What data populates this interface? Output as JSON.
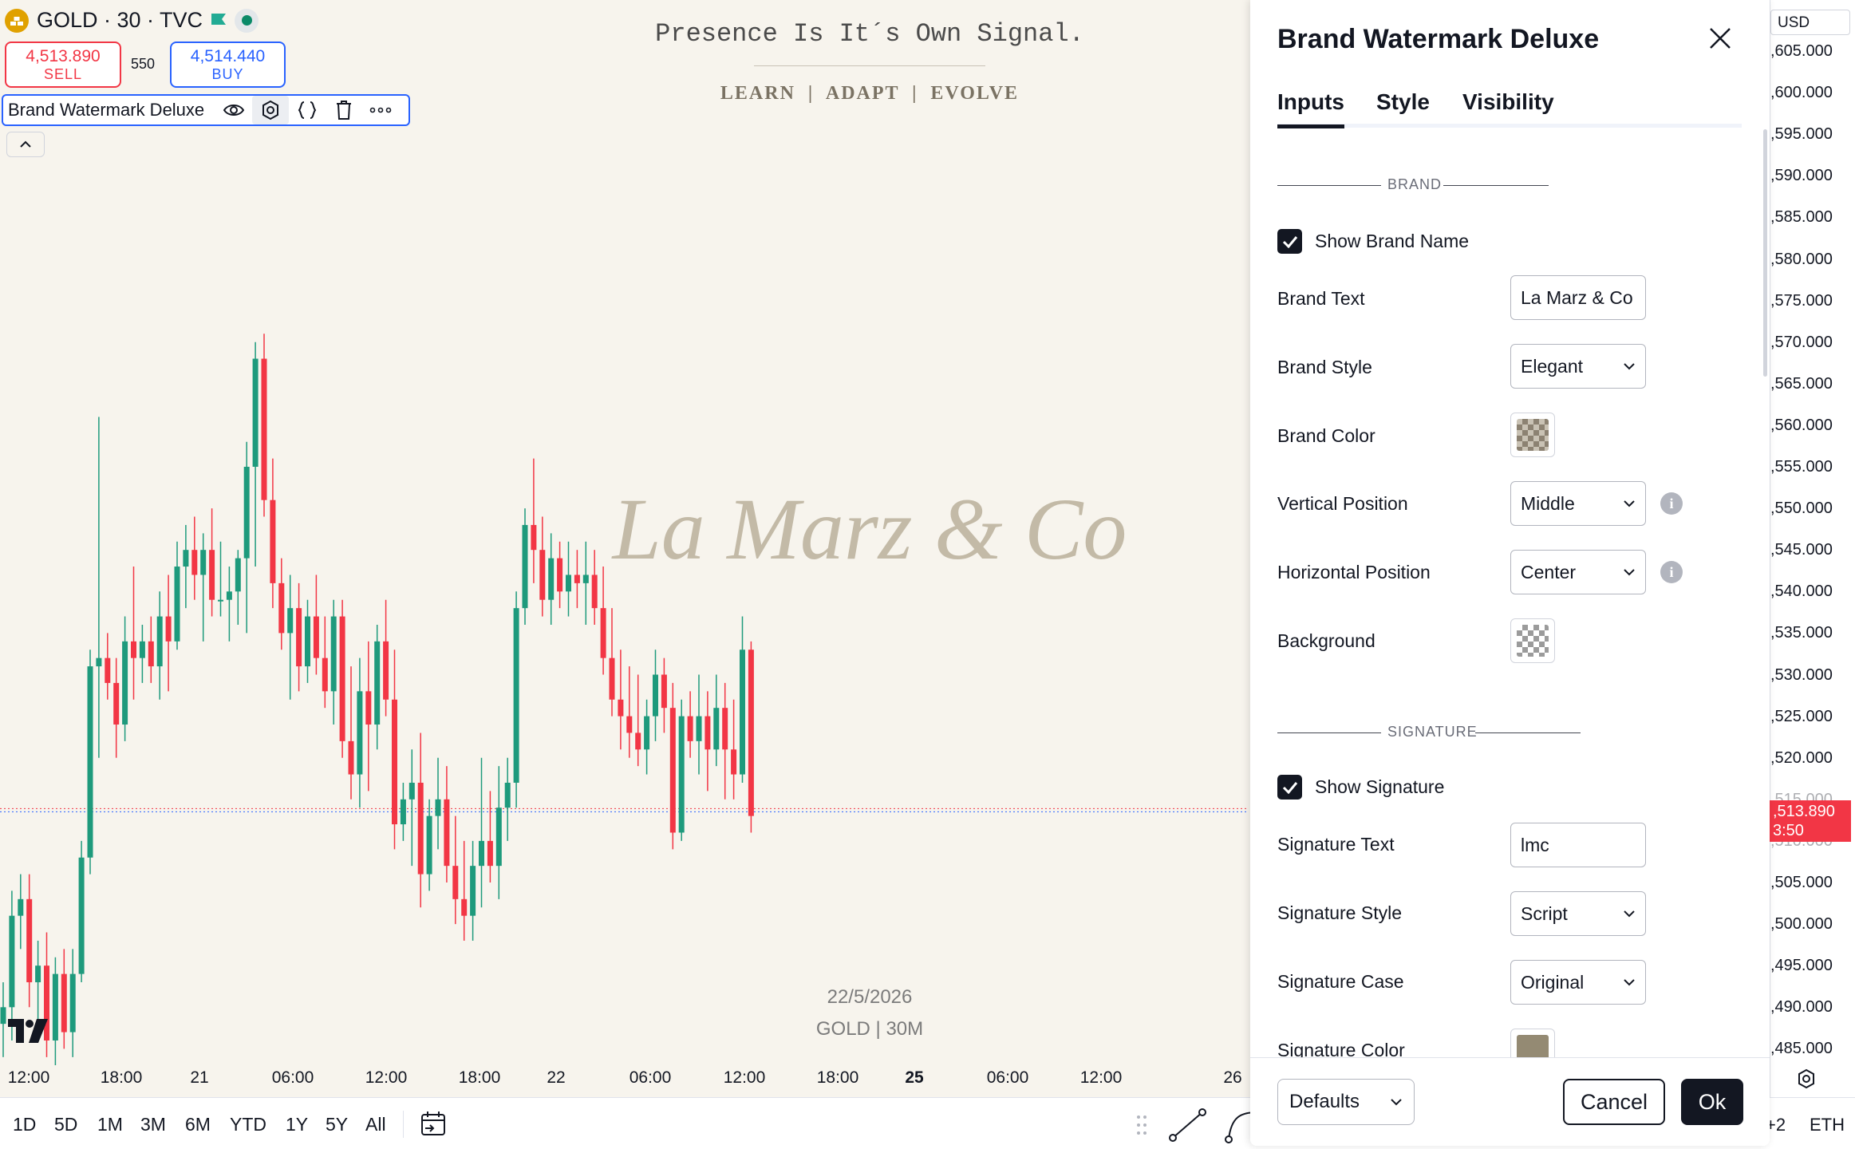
{
  "header": {
    "symbol": "GOLD · 30 · TVC",
    "sell_price": "4,513.890",
    "sell_label": "SELL",
    "spread": "550",
    "buy_price": "4,514.440",
    "buy_label": "BUY"
  },
  "indicator": {
    "name": "Brand Watermark Deluxe"
  },
  "watermark": {
    "tagline": "Presence Is It´s Own Signal.",
    "subtitle": "LEARN  |  ADAPT  |  EVOLVE",
    "brand": "La Marz & Co",
    "date": "22/5/2026",
    "symbol_tf": "GOLD | 30M"
  },
  "time_axis": [
    {
      "label": "12:00",
      "bold": false
    },
    {
      "label": "18:00",
      "bold": false
    },
    {
      "label": "21",
      "bold": false
    },
    {
      "label": "06:00",
      "bold": false
    },
    {
      "label": "12:00",
      "bold": false
    },
    {
      "label": "18:00",
      "bold": false
    },
    {
      "label": "22",
      "bold": false
    },
    {
      "label": "06:00",
      "bold": false
    },
    {
      "label": "12:00",
      "bold": false
    },
    {
      "label": "18:00",
      "bold": false
    },
    {
      "label": "25",
      "bold": true
    },
    {
      "label": "06:00",
      "bold": false
    },
    {
      "label": "12:00",
      "bold": false
    },
    {
      "label": "26",
      "bold": false
    }
  ],
  "price_axis": {
    "currency": "USD",
    "ticks": [
      ",605.000",
      ",600.000",
      ",595.000",
      ",590.000",
      ",585.000",
      ",580.000",
      ",575.000",
      ",570.000",
      ",565.000",
      ",560.000",
      ",555.000",
      ",550.000",
      ",545.000",
      ",540.000",
      ",535.000",
      ",530.000",
      ",525.000",
      ",520.000",
      ",515.000",
      ",510.000",
      ",505.000",
      ",500.000",
      ",495.000",
      ",490.000",
      ",485.000"
    ],
    "current_price": ",513.890",
    "countdown": "3:50"
  },
  "timeframes": [
    "1D",
    "5D",
    "1M",
    "3M",
    "6M",
    "YTD",
    "1Y",
    "5Y",
    "All"
  ],
  "bottom_right": {
    "extra": "+2",
    "session": "ETH"
  },
  "dialog": {
    "title": "Brand Watermark Deluxe",
    "tabs": [
      "Inputs",
      "Style",
      "Visibility"
    ],
    "brand_section": "BRAND",
    "show_brand_name": "Show Brand Name",
    "brand_text_label": "Brand Text",
    "brand_text_value": "La Marz & Co",
    "brand_style_label": "Brand Style",
    "brand_style_value": "Elegant",
    "brand_color_label": "Brand Color",
    "vertical_position_label": "Vertical Position",
    "vertical_position_value": "Middle",
    "horizontal_position_label": "Horizontal Position",
    "horizontal_position_value": "Center",
    "background_label": "Background",
    "signature_section": "SIGNATURE",
    "show_signature": "Show Signature",
    "signature_text_label": "Signature Text",
    "signature_text_value": "lmc",
    "signature_style_label": "Signature Style",
    "signature_style_value": "Script",
    "signature_case_label": "Signature Case",
    "signature_case_value": "Original",
    "signature_color_label": "Signature Color",
    "defaults_label": "Defaults",
    "cancel_label": "Cancel",
    "ok_label": "Ok"
  },
  "colors": {
    "up": "#1e9a7c",
    "down": "#f23645",
    "background": "#f7f4ed",
    "brand_watermark": "#c3baa7",
    "signature_color": "#948a73"
  },
  "chart_data": {
    "type": "candlestick",
    "price_range": [
      4482,
      4607
    ],
    "current_price": 4513.89,
    "candles": [
      [
        4488,
        4493,
        4484,
        4490
      ],
      [
        4490,
        4504,
        4486,
        4501
      ],
      [
        4501,
        4506,
        4497,
        4503
      ],
      [
        4503,
        4506,
        4490,
        4493
      ],
      [
        4493,
        4498,
        4488,
        4495
      ],
      [
        4495,
        4499,
        4484,
        4486
      ],
      [
        4486,
        4496,
        4483,
        4494
      ],
      [
        4494,
        4497,
        4485,
        4487
      ],
      [
        4487,
        4497,
        4484,
        4494
      ],
      [
        4494,
        4510,
        4493,
        4508
      ],
      [
        4508,
        4533,
        4506,
        4531
      ],
      [
        4531,
        4561,
        4520,
        4532
      ],
      [
        4532,
        4535,
        4527,
        4529
      ],
      [
        4529,
        4532,
        4520,
        4524
      ],
      [
        4524,
        4537,
        4522,
        4534
      ],
      [
        4534,
        4543,
        4527,
        4532
      ],
      [
        4532,
        4536,
        4529,
        4534
      ],
      [
        4534,
        4537,
        4529,
        4531
      ],
      [
        4531,
        4540,
        4527,
        4537
      ],
      [
        4537,
        4542,
        4528,
        4534
      ],
      [
        4534,
        4546,
        4533,
        4543
      ],
      [
        4543,
        4548,
        4538,
        4545
      ],
      [
        4545,
        4549,
        4539,
        4542
      ],
      [
        4542,
        4547,
        4534,
        4545
      ],
      [
        4545,
        4550,
        4537,
        4539
      ],
      [
        4539,
        4546,
        4537,
        4539
      ],
      [
        4539,
        4543,
        4534,
        4540
      ],
      [
        4540,
        4545,
        4536,
        4544
      ],
      [
        4544,
        4558,
        4535,
        4555
      ],
      [
        4555,
        4570,
        4543,
        4568
      ],
      [
        4568,
        4571,
        4549,
        4551
      ],
      [
        4551,
        4556,
        4538,
        4541
      ],
      [
        4541,
        4544,
        4533,
        4535
      ],
      [
        4535,
        4542,
        4527,
        4538
      ],
      [
        4538,
        4541,
        4528,
        4531
      ],
      [
        4531,
        4539,
        4529,
        4537
      ],
      [
        4537,
        4542,
        4530,
        4532
      ],
      [
        4532,
        4537,
        4526,
        4528
      ],
      [
        4528,
        4539,
        4524,
        4537
      ],
      [
        4537,
        4539,
        4520,
        4522
      ],
      [
        4522,
        4531,
        4515,
        4518
      ],
      [
        4518,
        4532,
        4514,
        4528
      ],
      [
        4528,
        4534,
        4516,
        4524
      ],
      [
        4524,
        4536,
        4521,
        4534
      ],
      [
        4534,
        4539,
        4525,
        4527
      ],
      [
        4527,
        4533,
        4509,
        4512
      ],
      [
        4512,
        4517,
        4510,
        4515
      ],
      [
        4515,
        4521,
        4507,
        4517
      ],
      [
        4517,
        4523,
        4502,
        4506
      ],
      [
        4506,
        4515,
        4504,
        4513
      ],
      [
        4513,
        4520,
        4509,
        4515
      ],
      [
        4515,
        4519,
        4505,
        4507
      ],
      [
        4507,
        4513,
        4500,
        4503
      ],
      [
        4503,
        4510,
        4498,
        4501
      ],
      [
        4501,
        4510,
        4498,
        4507
      ],
      [
        4507,
        4520,
        4502,
        4510
      ],
      [
        4510,
        4516,
        4505,
        4507
      ],
      [
        4507,
        4519,
        4503,
        4514
      ],
      [
        4514,
        4520,
        4510,
        4517
      ],
      [
        4517,
        4540,
        4514,
        4538
      ],
      [
        4538,
        4550,
        4536,
        4548
      ],
      [
        4548,
        4556,
        4541,
        4545
      ],
      [
        4545,
        4549,
        4537,
        4539
      ],
      [
        4539,
        4547,
        4536,
        4544
      ],
      [
        4544,
        4546,
        4538,
        4540
      ],
      [
        4540,
        4546,
        4537,
        4542
      ],
      [
        4542,
        4545,
        4538,
        4541
      ],
      [
        4541,
        4546,
        4536,
        4542
      ],
      [
        4542,
        4545,
        4536,
        4538
      ],
      [
        4538,
        4543,
        4530,
        4532
      ],
      [
        4532,
        4538,
        4525,
        4527
      ],
      [
        4527,
        4533,
        4521,
        4525
      ],
      [
        4525,
        4531,
        4520,
        4523
      ],
      [
        4523,
        4530,
        4519,
        4521
      ],
      [
        4521,
        4527,
        4518,
        4525
      ],
      [
        4525,
        4533,
        4522,
        4530
      ],
      [
        4530,
        4532,
        4523,
        4526
      ],
      [
        4526,
        4529,
        4509,
        4511
      ],
      [
        4511,
        4527,
        4510,
        4525
      ],
      [
        4525,
        4528,
        4520,
        4522
      ],
      [
        4522,
        4530,
        4518,
        4525
      ],
      [
        4525,
        4528,
        4516,
        4521
      ],
      [
        4521,
        4530,
        4519,
        4526
      ],
      [
        4526,
        4529,
        4515,
        4521
      ],
      [
        4521,
        4527,
        4515,
        4518
      ],
      [
        4518,
        4537,
        4517,
        4533
      ],
      [
        4533,
        4534,
        4511,
        4513
      ]
    ]
  }
}
